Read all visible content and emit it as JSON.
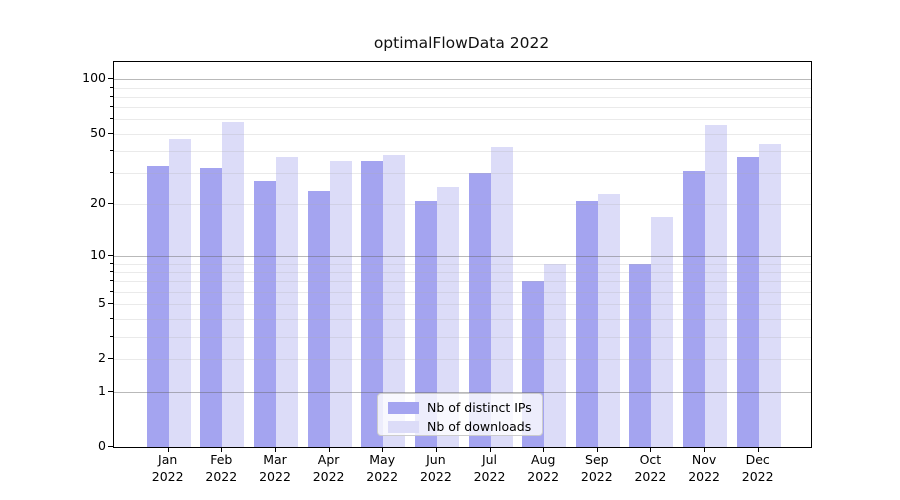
{
  "title": "optimalFlowData 2022",
  "legend": {
    "items": [
      {
        "label": "Nb of distinct IPs",
        "color": "#a4a4f0"
      },
      {
        "label": "Nb of downloads",
        "color": "#dcdcf8"
      }
    ]
  },
  "chart_data": {
    "type": "bar",
    "title": "optimalFlowData 2022",
    "categories": [
      "Jan 2022",
      "Feb 2022",
      "Mar 2022",
      "Apr 2022",
      "May 2022",
      "Jun 2022",
      "Jul 2022",
      "Aug 2022",
      "Sep 2022",
      "Oct 2022",
      "Nov 2022",
      "Dec 2022"
    ],
    "category_months": [
      "Jan",
      "Feb",
      "Mar",
      "Apr",
      "May",
      "Jun",
      "Jul",
      "Aug",
      "Sep",
      "Oct",
      "Nov",
      "Dec"
    ],
    "category_year": "2022",
    "series": [
      {
        "name": "Nb of distinct IPs",
        "color": "#a4a4f0",
        "values": [
          33,
          32,
          27,
          24,
          35,
          21,
          30,
          7,
          21,
          9,
          31,
          37
        ]
      },
      {
        "name": "Nb of downloads",
        "color": "#dcdcf8",
        "values": [
          47,
          58,
          37,
          35,
          38,
          25,
          42,
          9,
          23,
          17,
          56,
          44
        ]
      }
    ],
    "xlabel": "",
    "ylabel": "",
    "yscale": "log1p",
    "ylim": [
      0,
      124
    ],
    "yticks": [
      100,
      50,
      20,
      10,
      5,
      2,
      1,
      0
    ],
    "major_gridlines": [
      1,
      10,
      100
    ],
    "minor_gridlines": [
      2,
      3,
      4,
      5,
      6,
      7,
      8,
      9,
      20,
      30,
      40,
      50,
      60,
      70,
      80,
      90
    ],
    "grid": true,
    "legend_position": "lower center"
  }
}
